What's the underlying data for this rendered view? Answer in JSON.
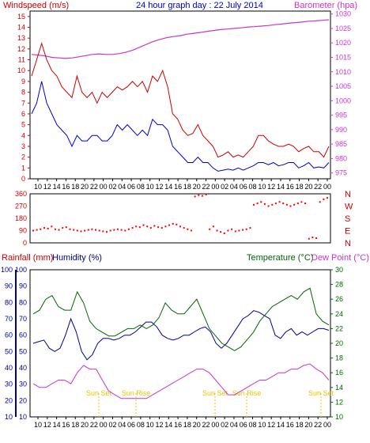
{
  "header": {
    "left": "Windspeed (m/s)",
    "center": "24 hour graph day : 22 July 2014",
    "right": "Barometer (hpa)"
  },
  "colors": {
    "wind": "#cc0000",
    "gust": "#cc0000",
    "windAvg": "#0000cc",
    "barometer": "#cc33cc",
    "direction": "#ff0000",
    "humidity": "#000099",
    "temperature": "#006600",
    "dewpoint": "#cc33cc",
    "rainfall": "#cc0000",
    "sun": "#e6c800",
    "grid": "#000000"
  },
  "legend": {
    "rainfall": "Rainfall (mm)",
    "humidity": "Humidity (%)",
    "temperature": "Temperature (°C)",
    "dewpoint": "Dew Point (°C)"
  },
  "time_labels": [
    "10",
    "12",
    "14",
    "16",
    "18",
    "20",
    "22",
    "00",
    "02",
    "04",
    "06",
    "08",
    "10",
    "12",
    "14",
    "16",
    "18",
    "20",
    "22",
    "00",
    "02",
    "04",
    "06",
    "08",
    "10",
    "12",
    "14",
    "16",
    "18",
    "20",
    "22",
    "00"
  ],
  "direction_labels": [
    "N",
    "W",
    "S",
    "E",
    "N"
  ],
  "sun_labels": [
    "Sun Set",
    "Sun Rise",
    "Sun Set",
    "Sun Rise",
    "Sun Set"
  ],
  "chart_data": [
    {
      "type": "line",
      "name": "wind-barometer",
      "y_left": {
        "label": "Windspeed (m/s)",
        "ticks": [
          0,
          1,
          2,
          3,
          4,
          5,
          6,
          7,
          8,
          9,
          10,
          11,
          12,
          13,
          14,
          15
        ],
        "ylim": [
          0,
          15.5
        ]
      },
      "y_right": {
        "label": "Barometer (hpa)",
        "ticks": [
          975,
          980,
          985,
          990,
          995,
          1000,
          1005,
          1010,
          1015,
          1020,
          1025,
          1030
        ],
        "ylim": [
          973,
          1031
        ]
      },
      "series": [
        {
          "name": "Windspeed (m/s)",
          "axis": "left",
          "values": [
            9.5,
            11,
            12.5,
            11,
            10,
            9.5,
            8.5,
            8,
            7.5,
            9.5,
            8,
            7.5,
            8,
            7,
            8,
            7.5,
            8,
            8.5,
            8.2,
            8.5,
            9,
            8.5,
            9,
            8,
            9.5,
            9,
            10,
            8.5,
            6,
            5.5,
            4.5,
            4,
            4.2,
            5,
            4,
            3.5,
            3,
            2,
            2.2,
            2.5,
            2,
            2.2,
            2,
            2.5,
            3,
            4,
            4,
            3.5,
            3.2,
            3,
            3,
            3.2,
            3,
            2.5,
            2.8,
            3,
            2.5,
            2.5,
            2,
            3
          ]
        },
        {
          "name": "Wind average",
          "axis": "left",
          "values": [
            6,
            7,
            9,
            7,
            6,
            5,
            4.5,
            4,
            3,
            4,
            3.5,
            3.5,
            4,
            4,
            3.5,
            3.5,
            4,
            5,
            4.5,
            5,
            4.5,
            4,
            4.5,
            4,
            5.5,
            5,
            5,
            4.5,
            3,
            2.5,
            2,
            1.5,
            1.5,
            2,
            1.5,
            1.5,
            1,
            0.7,
            0.8,
            0.9,
            0.8,
            1,
            0.8,
            1,
            1.2,
            1.5,
            1.5,
            1.3,
            1.5,
            1.2,
            1.3,
            1.5,
            1.5,
            1,
            1.2,
            1.5,
            1,
            1.1,
            1,
            1.5
          ]
        },
        {
          "name": "Barometer (hpa)",
          "axis": "right",
          "values": [
            1016,
            1015.8,
            1015.5,
            1015,
            1014.8,
            1014.6,
            1014.8,
            1015.2,
            1015.6,
            1016,
            1016.2,
            1016,
            1016,
            1016.3,
            1016.8,
            1017.5,
            1018.5,
            1019.5,
            1020.5,
            1021.2,
            1021.8,
            1022.2,
            1022.5,
            1023,
            1023.3,
            1023.6,
            1024,
            1024.3,
            1024.6,
            1024.8,
            1025,
            1025.2,
            1025.5,
            1025.6,
            1025.8,
            1026,
            1026.3,
            1026.5,
            1026.8,
            1027,
            1027.2,
            1027.5,
            1027.6,
            1027.8,
            1028
          ]
        }
      ]
    },
    {
      "type": "scatter",
      "name": "wind-direction",
      "y_left": {
        "ticks": [
          0,
          90,
          180,
          270,
          360
        ],
        "ylim": [
          0,
          360
        ]
      },
      "values": [
        90,
        95,
        100,
        110,
        105,
        120,
        100,
        95,
        110,
        115,
        100,
        95,
        90,
        85,
        90,
        95,
        100,
        95,
        90,
        85,
        80,
        90,
        95,
        100,
        95,
        90,
        100,
        110,
        120,
        115,
        130,
        120,
        110,
        125,
        115,
        110,
        120,
        130,
        140,
        135,
        120,
        110,
        100,
        90,
        340,
        350,
        345,
        355,
        100,
        120,
        90,
        80,
        70,
        90,
        100,
        85,
        90,
        95,
        100,
        110,
        280,
        290,
        300,
        285,
        270,
        280,
        290,
        300,
        290,
        280,
        270,
        280,
        290,
        300,
        290,
        30,
        40,
        35,
        300,
        320,
        330
      ]
    },
    {
      "type": "line",
      "name": "humidity-temperature",
      "y_left": {
        "ticks": [
          10,
          20,
          30,
          40,
          50,
          60,
          70,
          80,
          90,
          100
        ],
        "ylim": [
          10,
          100
        ]
      },
      "y_right": {
        "ticks": [
          10,
          12,
          14,
          16,
          18,
          20,
          22,
          24,
          26,
          28,
          30
        ],
        "ylim": [
          10,
          30
        ]
      },
      "series": [
        {
          "name": "Humidity (%)",
          "axis": "left",
          "values": [
            55,
            56,
            57,
            52,
            50,
            52,
            60,
            70,
            62,
            50,
            45,
            48,
            55,
            58,
            58,
            57,
            58,
            60,
            60,
            62,
            65,
            68,
            68,
            65,
            60,
            58,
            57,
            58,
            60,
            60,
            62,
            64,
            65,
            62,
            55,
            52,
            55,
            60,
            65,
            70,
            72,
            75,
            74,
            72,
            70,
            60,
            58,
            62,
            64,
            60,
            62,
            60,
            62,
            64,
            64,
            63
          ]
        },
        {
          "name": "Temperature (°C)",
          "axis": "right",
          "values": [
            24,
            24.5,
            26,
            26.5,
            25,
            24.5,
            24.5,
            27,
            25.5,
            23,
            22,
            21.5,
            21,
            21,
            21.5,
            22,
            22,
            22.5,
            22,
            22.5,
            23.5,
            25.5,
            24.5,
            24,
            24,
            25,
            26,
            24,
            22,
            21,
            20,
            19.5,
            19,
            19.5,
            20.5,
            21.5,
            23,
            24,
            25,
            25.5,
            26,
            26.5,
            26,
            27,
            27.5,
            24,
            23,
            22.5
          ]
        },
        {
          "name": "Dew Point (°C)",
          "axis": "right",
          "values": [
            14.5,
            14,
            14,
            14.5,
            15,
            15,
            14.5,
            16,
            17,
            16.5,
            16.5,
            15,
            13.5,
            13,
            12.5,
            12.5,
            12.5,
            12.5,
            12.5,
            13,
            13.5,
            14,
            14.5,
            15,
            15.5,
            16,
            16.5,
            16.5,
            16,
            15,
            14,
            13,
            13,
            13.5,
            14,
            14.5,
            15,
            15,
            15.5,
            16,
            16,
            16.5,
            16.5,
            17,
            17.2,
            16.5,
            16,
            15
          ]
        }
      ]
    }
  ]
}
